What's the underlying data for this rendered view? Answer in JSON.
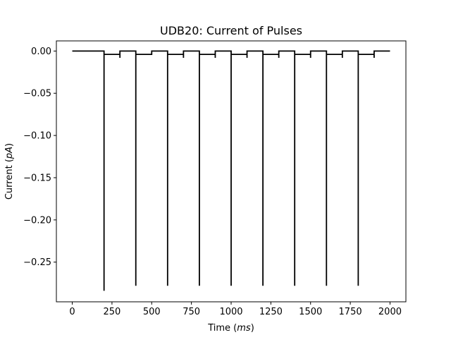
{
  "chart_data": {
    "type": "line",
    "title": "UDB20: Current of Pulses",
    "xlabel": "Time",
    "xlabel_unit": "ms",
    "ylabel": "Current",
    "ylabel_unit": "pA",
    "xlim": [
      -100,
      2100
    ],
    "ylim": [
      -0.297,
      0.012
    ],
    "x_ticks": [
      0,
      250,
      500,
      750,
      1000,
      1250,
      1500,
      1750,
      2000
    ],
    "x_tick_labels": [
      "0",
      "250",
      "500",
      "750",
      "1000",
      "1250",
      "1500",
      "1750",
      "2000"
    ],
    "y_ticks": [
      0.0,
      -0.05,
      -0.1,
      -0.15,
      -0.2,
      -0.25
    ],
    "y_tick_labels": [
      "0.00",
      "−0.05",
      "−0.10",
      "−0.15",
      "−0.20",
      "−0.25"
    ],
    "grid": false,
    "line_color": "#000000",
    "series": [
      {
        "x": [
          0,
          200,
          200,
          200,
          300,
          300,
          300,
          400,
          400,
          400,
          500,
          500,
          600,
          600,
          600,
          700,
          700,
          700,
          800,
          800,
          800,
          900,
          900,
          900,
          1000,
          1000,
          1000,
          1100,
          1100,
          1100,
          1200,
          1200,
          1200,
          1300,
          1300,
          1300,
          1400,
          1400,
          1400,
          1500,
          1500,
          1500,
          1600,
          1600,
          1600,
          1700,
          1700,
          1700,
          1800,
          1800,
          1800,
          1900,
          1900,
          1900,
          2000
        ],
        "y": [
          0,
          0,
          -0.284,
          -0.004,
          -0.004,
          -0.008,
          0,
          0,
          -0.278,
          -0.004,
          -0.004,
          0,
          0,
          -0.278,
          -0.004,
          -0.004,
          -0.008,
          0,
          0,
          -0.278,
          -0.004,
          -0.004,
          -0.008,
          0,
          0,
          -0.278,
          -0.004,
          -0.004,
          -0.008,
          0,
          0,
          -0.278,
          -0.004,
          -0.004,
          -0.008,
          0,
          0,
          -0.278,
          -0.004,
          -0.004,
          -0.008,
          0,
          0,
          -0.278,
          -0.004,
          -0.004,
          -0.008,
          0,
          0,
          -0.278,
          -0.004,
          -0.004,
          -0.008,
          0,
          0
        ]
      }
    ]
  }
}
